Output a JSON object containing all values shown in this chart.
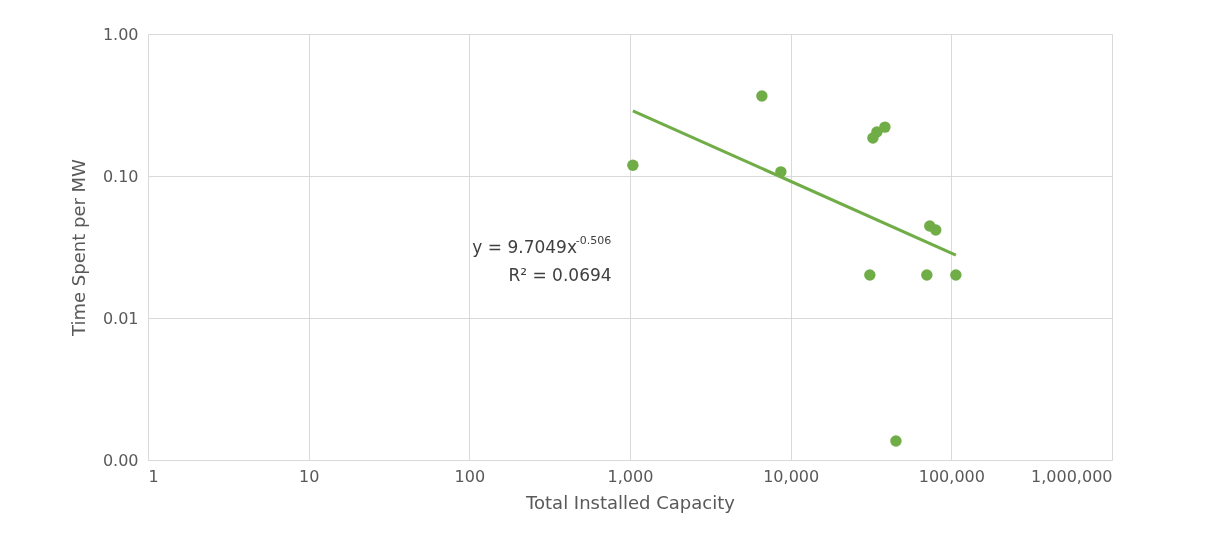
{
  "chart_data": {
    "type": "scatter",
    "xlabel": "Total Installed Capacity",
    "ylabel": "Time Spent per MW",
    "log": "xy",
    "grid": true,
    "marker": "circle",
    "xlim": [
      1,
      1000000
    ],
    "ylim": [
      0.001,
      1
    ],
    "xticks": [
      1,
      10,
      100,
      {
        "value": 1000,
        "label": "1,000"
      },
      {
        "value": 10000,
        "label": "10,000"
      },
      {
        "value": 100000,
        "label": "100,000"
      },
      {
        "value": 1000000,
        "label": "1,000,000"
      }
    ],
    "yticks": [
      {
        "value": 0.001,
        "label": "0.00"
      },
      {
        "value": 0.01,
        "label": "0.01"
      },
      {
        "value": 0.1,
        "label": "0.10"
      },
      {
        "value": 1,
        "label": "1.00"
      }
    ],
    "series": [
      {
        "color": "#70ad47",
        "x": [
          1042,
          6620,
          8690,
          32500,
          34400,
          38600,
          31100,
          45200,
          70400,
          73400,
          80000,
          106700
        ],
        "values": [
          0.119,
          0.366,
          0.107,
          0.185,
          0.204,
          0.221,
          0.0201,
          0.00136,
          0.0201,
          0.0445,
          0.0417,
          0.0201
        ]
      },
      {
        "type": "line",
        "marker": "none",
        "color": "#70ad47",
        "x": [
          1042,
          106700
        ],
        "values": [
          0.288,
          0.0277
        ]
      }
    ],
    "annotations": [
      "y = 9.7049x$^{-0.506}$",
      "R² = 0.0694"
    ]
  }
}
